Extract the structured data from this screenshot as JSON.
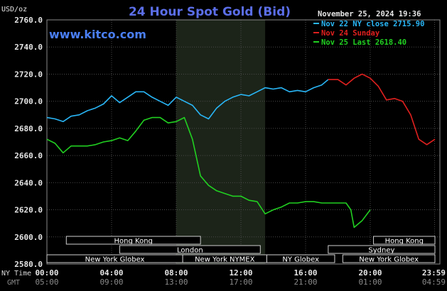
{
  "chart_data": {
    "type": "line",
    "title": "24 Hour Spot Gold (Bid)",
    "website": "www.kitco.com",
    "date_stamp": "November 25, 2024 19:36",
    "y_unit_label": "USD/oz",
    "ylim": [
      2580,
      2760
    ],
    "y_ticks": [
      "2760.0",
      "2740.0",
      "2720.0",
      "2700.0",
      "2680.0",
      "2660.0",
      "2640.0",
      "2620.0",
      "2600.0",
      "2580.0"
    ],
    "x_row_labels": {
      "ny": "NY Time",
      "gmt": "GMT"
    },
    "x_ticks_ny": [
      "00:00",
      "04:00",
      "08:00",
      "12:00",
      "16:00",
      "20:00",
      "23:59"
    ],
    "x_ticks_gmt": [
      "05:00",
      "09:00",
      "13:00",
      "17:00",
      "21:00",
      "01:00",
      "04:59"
    ],
    "x_tick_hours": [
      0,
      4,
      8,
      12,
      16,
      20,
      23.98
    ],
    "shaded_hours": [
      8,
      13.5
    ],
    "grid": true,
    "legend_position": "top-right",
    "legend": [
      {
        "text": "Nov 22 NY close 2715.90",
        "color": "#29b6f6"
      },
      {
        "text": "Nov 24 Sunday",
        "color": "#e0201e"
      },
      {
        "text": "Nov 25 Last 2618.40",
        "color": "#21d021"
      }
    ],
    "series": [
      {
        "color": "#29b6f6",
        "x": [
          0,
          0.5,
          1,
          1.5,
          2,
          2.5,
          3,
          3.5,
          4,
          4.5,
          5,
          5.5,
          6,
          6.5,
          7,
          7.5,
          8,
          8.5,
          9,
          9.5,
          10,
          10.5,
          11,
          11.5,
          12,
          12.5,
          13,
          13.5,
          14,
          14.5,
          15,
          15.5,
          16,
          16.5,
          17,
          17.4
        ],
        "y": [
          2688,
          2687,
          2685,
          2689,
          2690,
          2693,
          2695,
          2698,
          2704,
          2699,
          2703,
          2707,
          2707,
          2703,
          2700,
          2697,
          2703,
          2700,
          2697,
          2690,
          2687,
          2695,
          2700,
          2703,
          2705,
          2704,
          2707,
          2710,
          2709,
          2710,
          2707,
          2708,
          2707,
          2710,
          2712,
          2716
        ]
      },
      {
        "color": "#e0201e",
        "x": [
          17.4,
          18,
          18.5,
          19,
          19.5,
          20,
          20.5,
          21,
          21.5,
          22,
          22.5,
          23,
          23.5,
          24
        ],
        "y": [
          2716,
          2716,
          2712,
          2717,
          2720,
          2717,
          2711,
          2701,
          2702,
          2700,
          2690,
          2672,
          2668,
          2672
        ]
      },
      {
        "color": "#21d021",
        "x": [
          0,
          0.5,
          1,
          1.5,
          2,
          2.5,
          3,
          3.5,
          4,
          4.5,
          5,
          5.5,
          6,
          6.5,
          7,
          7.5,
          8,
          8.5,
          9,
          9.5,
          10,
          10.5,
          11,
          11.5,
          12,
          12.5,
          13,
          13.5,
          14,
          14.5,
          15,
          15.5,
          16,
          16.5,
          17,
          17.5,
          18,
          18.5,
          18.8,
          19,
          19.5,
          20
        ],
        "y": [
          2672,
          2669,
          2662,
          2667,
          2667,
          2667,
          2668,
          2670,
          2671,
          2673,
          2671,
          2678,
          2686,
          2688,
          2688,
          2684,
          2685,
          2688,
          2672,
          2645,
          2638,
          2634,
          2632,
          2630,
          2630,
          2627,
          2626,
          2617,
          2620,
          2622,
          2625,
          2625,
          2626,
          2626,
          2625,
          2625,
          2625,
          2625,
          2620,
          2607,
          2612,
          2620
        ]
      }
    ]
  },
  "sessions": [
    {
      "label": "Hong Kong",
      "start": 1.2,
      "end": 9.5,
      "row": 0
    },
    {
      "label": "Hong Kong",
      "start": 20.2,
      "end": 28,
      "row": 0
    },
    {
      "label": "London",
      "start": 4.5,
      "end": 13.2,
      "row": 1
    },
    {
      "label": "Sydney",
      "start": 17.4,
      "end": 28,
      "row": 1
    },
    {
      "label": "New York Globex",
      "start": -5,
      "end": 8.4,
      "row": 2
    },
    {
      "label": "New York NYMEX",
      "start": 8.4,
      "end": 13.6,
      "row": 2
    },
    {
      "label": "NY Globex",
      "start": 13.6,
      "end": 17.8,
      "row": 2
    },
    {
      "label": "New York Globex",
      "start": 18.3,
      "end": 28,
      "row": 2
    }
  ]
}
